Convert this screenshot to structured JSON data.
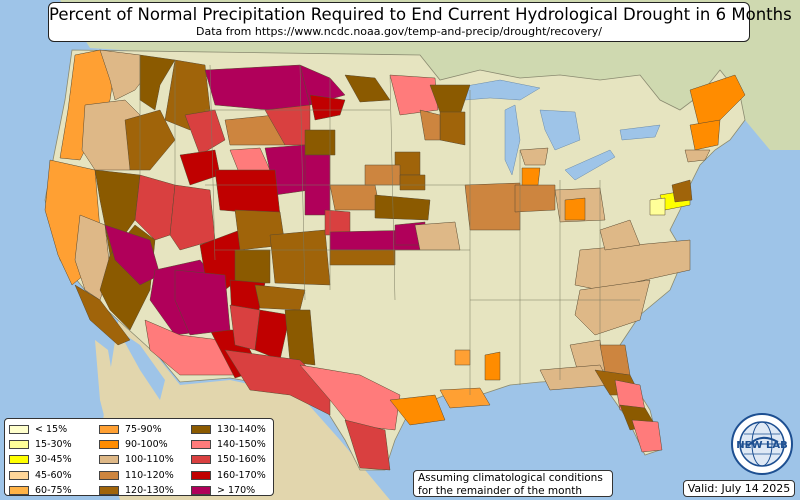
{
  "header": {
    "title": "Percent of Normal Precipitation Required to End Current Hydrological Drought in 6 Months",
    "subtitle": "Data from https://www.ncdc.noaa.gov/temp-and-precip/drought/recovery/"
  },
  "legend": {
    "items": [
      {
        "label": "< 15%",
        "color": "#ffffcc"
      },
      {
        "label": "15-30%",
        "color": "#ffff99"
      },
      {
        "label": "30-45%",
        "color": "#ffff00"
      },
      {
        "label": "45-60%",
        "color": "#ffd699"
      },
      {
        "label": "60-75%",
        "color": "#ffb347"
      },
      {
        "label": "75-90%",
        "color": "#ffa033"
      },
      {
        "label": "90-100%",
        "color": "#ff8c00"
      },
      {
        "label": "100-110%",
        "color": "#deb887"
      },
      {
        "label": "110-120%",
        "color": "#cd853f"
      },
      {
        "label": "120-130%",
        "color": "#a0640a"
      },
      {
        "label": "130-140%",
        "color": "#8b5a00"
      },
      {
        "label": "140-150%",
        "color": "#ff7b7b"
      },
      {
        "label": "150-160%",
        "color": "#d94040"
      },
      {
        "label": "160-170%",
        "color": "#c00000"
      },
      {
        "label": "> 170%",
        "color": "#b0005a"
      }
    ]
  },
  "note": {
    "line1": "Assuming climatological conditions",
    "line2": "for the remainder of the month"
  },
  "valid": "Valid: July 14 2025",
  "logo": {
    "text": "NEW LAB",
    "icon": "globe-logo-icon"
  },
  "colors": {
    "ocean": "#9ec4e8",
    "land": "#e6e4c0",
    "canada": "#cfd9b0",
    "mexico": "#e2d6ad"
  }
}
